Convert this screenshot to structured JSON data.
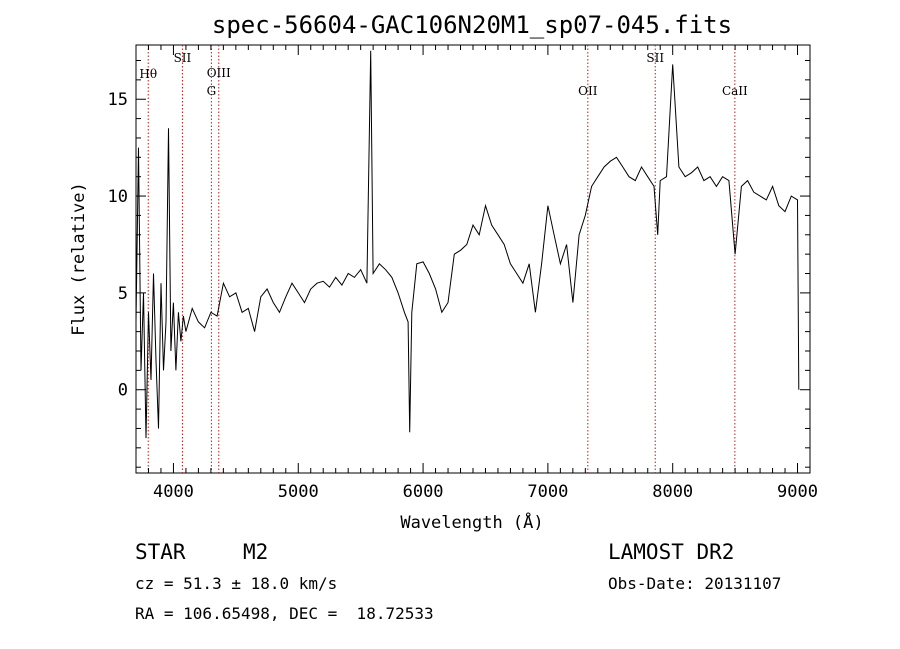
{
  "chart_data": {
    "type": "line",
    "title": "spec-56604-GAC106N20M1_sp07-045.fits",
    "xlabel": "Wavelength (Å)",
    "ylabel": "Flux (relative)",
    "xlim": [
      3700,
      9100
    ],
    "ylim": [
      -4.3,
      17.8
    ],
    "xticks": [
      4000,
      5000,
      6000,
      7000,
      8000,
      9000
    ],
    "xtick_labels": [
      "4000",
      "5000",
      "6000",
      "7000",
      "8000",
      "9000"
    ],
    "yticks": [
      0,
      5,
      10,
      15
    ],
    "ytick_labels": [
      "0",
      "5",
      "10",
      "15"
    ],
    "grid": false,
    "legend": "none",
    "line_color": "#000000",
    "marker_color": "#b22222",
    "line_markers": [
      {
        "label": "Hθ",
        "x": 3798
      },
      {
        "label": "SII",
        "x": 4072
      },
      {
        "label": "OIII",
        "x": 4363
      },
      {
        "label": "G",
        "x": 4304
      },
      {
        "label": "OII",
        "x": 7320
      },
      {
        "label": "SII",
        "x": 7860
      },
      {
        "label": "CaII",
        "x": 8498
      }
    ],
    "series": [
      {
        "x": [
          3700,
          3720,
          3740,
          3760,
          3780,
          3800,
          3820,
          3840,
          3860,
          3880,
          3900,
          3920,
          3940,
          3960,
          3980,
          4000,
          4020,
          4040,
          4060,
          4080,
          4100,
          4150,
          4200,
          4250,
          4300,
          4350,
          4400,
          4450,
          4500,
          4550,
          4600,
          4650,
          4700,
          4750,
          4800,
          4850,
          4900,
          4950,
          5000,
          5050,
          5100,
          5150,
          5200,
          5250,
          5300,
          5350,
          5400,
          5450,
          5500,
          5550,
          5580,
          5600,
          5650,
          5700,
          5750,
          5800,
          5850,
          5880,
          5893,
          5910,
          5950,
          6000,
          6050,
          6100,
          6150,
          6200,
          6250,
          6300,
          6350,
          6400,
          6450,
          6500,
          6550,
          6600,
          6650,
          6700,
          6750,
          6800,
          6850,
          6900,
          6950,
          7000,
          7050,
          7100,
          7150,
          7200,
          7250,
          7300,
          7350,
          7400,
          7450,
          7500,
          7550,
          7600,
          7650,
          7700,
          7750,
          7800,
          7850,
          7880,
          7900,
          7950,
          8000,
          8050,
          8100,
          8150,
          8200,
          8250,
          8300,
          8350,
          8400,
          8450,
          8500,
          8550,
          8600,
          8650,
          8700,
          8750,
          8800,
          8850,
          8900,
          8950,
          9000,
          9010
        ],
        "y": [
          3.5,
          12.5,
          1.0,
          5.0,
          -2.5,
          4.0,
          0.5,
          6.0,
          1.5,
          -2.0,
          5.5,
          1.0,
          3.5,
          13.5,
          2.0,
          4.5,
          1.0,
          4.0,
          2.5,
          3.8,
          3.0,
          4.2,
          3.5,
          3.2,
          4.0,
          3.8,
          5.5,
          4.8,
          5.0,
          4.0,
          4.2,
          3.0,
          4.8,
          5.2,
          4.5,
          4.0,
          4.8,
          5.5,
          5.0,
          4.5,
          5.2,
          5.5,
          5.6,
          5.3,
          5.8,
          5.4,
          6.0,
          5.8,
          6.2,
          5.5,
          17.5,
          6.0,
          6.5,
          6.2,
          5.8,
          5.0,
          4.0,
          3.5,
          -2.2,
          4.0,
          6.5,
          6.6,
          6.0,
          5.2,
          4.0,
          4.5,
          7.0,
          7.2,
          7.5,
          8.5,
          8.0,
          9.5,
          8.5,
          8.0,
          7.5,
          6.5,
          6.0,
          5.5,
          6.5,
          4.0,
          6.5,
          9.5,
          8.0,
          6.5,
          7.5,
          4.5,
          8.0,
          9.0,
          10.5,
          11.0,
          11.5,
          11.8,
          12.0,
          11.5,
          11.0,
          10.8,
          11.5,
          11.0,
          10.5,
          8.0,
          10.8,
          11.0,
          16.8,
          11.5,
          11.0,
          11.2,
          11.5,
          10.8,
          11.0,
          10.5,
          11.0,
          10.8,
          7.0,
          10.5,
          10.8,
          10.2,
          10.0,
          9.8,
          10.5,
          9.5,
          9.2,
          10.0,
          9.8,
          0.0
        ]
      }
    ]
  },
  "info": {
    "object_class": "STAR",
    "subclass": "M2",
    "survey": "LAMOST DR2",
    "cz": "cz = 51.3 ± 18.0 km/s",
    "obs_date": "Obs-Date: 20131107",
    "coords": "RA = 106.65498, DEC =  18.72533"
  }
}
